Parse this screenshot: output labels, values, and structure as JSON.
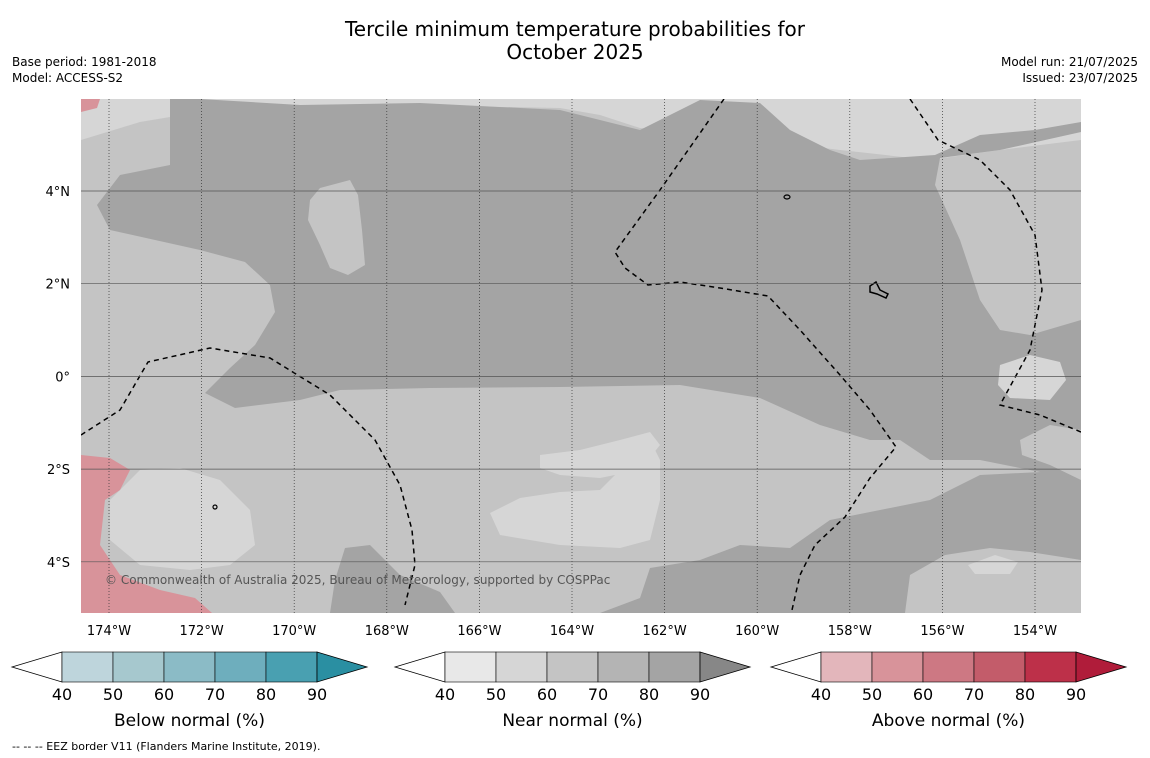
{
  "title_line1": "Tercile minimum temperature probabilities for",
  "title_line2": "October 2025",
  "left_info": [
    "Base period: 1981-2018",
    "Model: ACCESS-S2"
  ],
  "right_info": [
    "Model run: 21/07/2025",
    "Issued: 23/07/2025"
  ],
  "copyright": "© Commonwealth of Australia 2025, Bureau of Meteorology, supported by COSPPac",
  "footnote": "--  --  -- EEZ border V11 (Flanders Marine Institute, 2019).",
  "map": {
    "lon_labels": [
      "174°W",
      "172°W",
      "170°W",
      "168°W",
      "166°W",
      "164°W",
      "162°W",
      "160°W",
      "158°W",
      "156°W",
      "154°W"
    ],
    "lat_labels": [
      "4°N",
      "2°N",
      "0°",
      "2°S",
      "4°S"
    ]
  },
  "colors": {
    "near_normal_50": "#d6d6d6",
    "near_normal_60": "#c4c4c4",
    "near_normal_70": "#b4b4b4",
    "near_normal_80": "#a4a4a4",
    "above_normal_60": "#d8939a",
    "above_normal_50": "#e3b6bb"
  },
  "colorbars": [
    {
      "label": "Below normal (%)",
      "ticks": [
        "40",
        "50",
        "60",
        "70",
        "80",
        "90"
      ],
      "low": "#ffffff",
      "high": "#2a8fa2",
      "colors": [
        "#bed5dc",
        "#a6c8ce",
        "#8bbbc6",
        "#6eaebd",
        "#49a0b1"
      ]
    },
    {
      "label": "Near normal (%)",
      "ticks": [
        "40",
        "50",
        "60",
        "70",
        "80",
        "90"
      ],
      "low": "#ffffff",
      "high": "#878787",
      "colors": [
        "#e8e8e8",
        "#d6d6d6",
        "#c4c4c4",
        "#b4b4b4",
        "#a4a4a4"
      ]
    },
    {
      "label": "Above normal (%)",
      "ticks": [
        "40",
        "50",
        "60",
        "70",
        "80",
        "90"
      ],
      "low": "#ffffff",
      "high": "#b01c3a",
      "colors": [
        "#e3b6bb",
        "#d8939a",
        "#cd7883",
        "#c35c6a",
        "#bd3049"
      ]
    }
  ]
}
